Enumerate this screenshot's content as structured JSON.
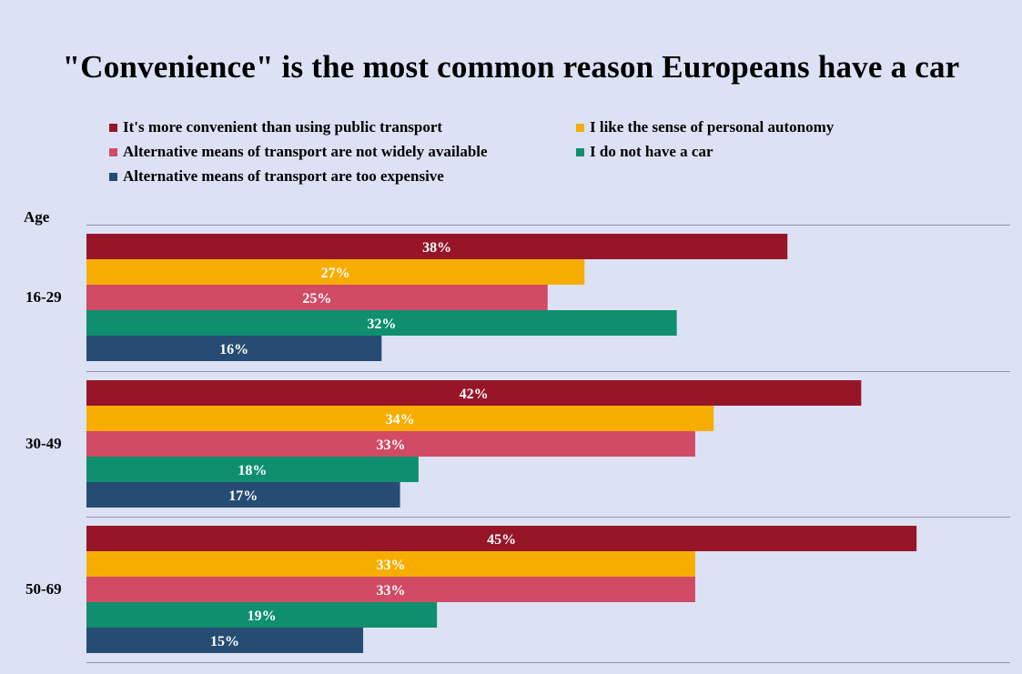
{
  "chart_data": {
    "type": "bar",
    "orientation": "horizontal",
    "title": "\"Convenience\" is the most common reason Europeans have a car",
    "category_axis_title": "Age",
    "categories": [
      "16-29",
      "30-49",
      "50-69"
    ],
    "value_suffix": "%",
    "xlim": [
      0,
      48
    ],
    "grid": false,
    "legend_position": "top",
    "series": [
      {
        "name": "It's more convenient than using public transport",
        "color": "#961628",
        "values": [
          38,
          42,
          45
        ]
      },
      {
        "name": "I like the sense of personal autonomy",
        "color": "#f7ad00",
        "values": [
          27,
          34,
          33
        ]
      },
      {
        "name": "Alternative means of transport are not widely available",
        "color": "#d14b64",
        "values": [
          25,
          33,
          33
        ]
      },
      {
        "name": "I do not have a car",
        "color": "#0f8f6e",
        "values": [
          32,
          18,
          19
        ]
      },
      {
        "name": "Alternative means of transport are too expensive",
        "color": "#264c73",
        "values": [
          16,
          17,
          15
        ]
      }
    ]
  }
}
